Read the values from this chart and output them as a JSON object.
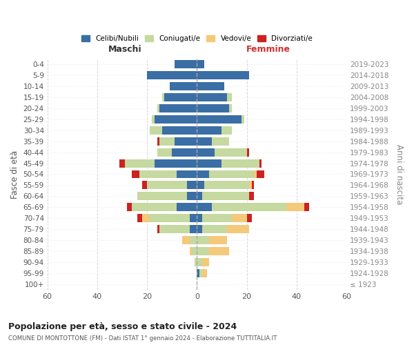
{
  "age_groups": [
    "0-4",
    "5-9",
    "10-14",
    "15-19",
    "20-24",
    "25-29",
    "30-34",
    "35-39",
    "40-44",
    "45-49",
    "50-54",
    "55-59",
    "60-64",
    "65-69",
    "70-74",
    "75-79",
    "80-84",
    "85-89",
    "90-94",
    "95-99",
    "100+"
  ],
  "birth_years": [
    "2019-2023",
    "2014-2018",
    "2009-2013",
    "2004-2008",
    "1999-2003",
    "1994-1998",
    "1989-1993",
    "1984-1988",
    "1979-1983",
    "1974-1978",
    "1969-1973",
    "1964-1968",
    "1959-1963",
    "1954-1958",
    "1949-1953",
    "1944-1948",
    "1939-1943",
    "1934-1938",
    "1929-1933",
    "1924-1928",
    "≤ 1923"
  ],
  "colors": {
    "celibi": "#3a6ea5",
    "coniugati": "#c5d9a0",
    "vedovi": "#f5c97a",
    "divorziati": "#cc2222"
  },
  "maschi": {
    "celibi": [
      9,
      20,
      11,
      13,
      15,
      17,
      14,
      9,
      10,
      17,
      8,
      4,
      4,
      8,
      3,
      3,
      0,
      0,
      0,
      0,
      0
    ],
    "coniugati": [
      0,
      0,
      0,
      1,
      1,
      1,
      5,
      6,
      6,
      12,
      15,
      16,
      20,
      18,
      16,
      12,
      3,
      2,
      1,
      0,
      0
    ],
    "vedovi": [
      0,
      0,
      0,
      0,
      0,
      0,
      0,
      0,
      0,
      0,
      0,
      0,
      0,
      0,
      3,
      0,
      3,
      1,
      0,
      0,
      0
    ],
    "divorziati": [
      0,
      0,
      0,
      0,
      0,
      0,
      0,
      1,
      0,
      2,
      3,
      2,
      0,
      2,
      2,
      1,
      0,
      0,
      0,
      0,
      0
    ]
  },
  "femmine": {
    "celibi": [
      3,
      21,
      11,
      12,
      13,
      18,
      10,
      6,
      7,
      10,
      5,
      3,
      2,
      6,
      2,
      2,
      0,
      0,
      0,
      1,
      0
    ],
    "coniugati": [
      0,
      0,
      0,
      2,
      1,
      1,
      4,
      7,
      13,
      15,
      18,
      18,
      19,
      30,
      12,
      10,
      5,
      5,
      2,
      1,
      0
    ],
    "vedovi": [
      0,
      0,
      0,
      0,
      0,
      0,
      0,
      0,
      0,
      0,
      1,
      1,
      0,
      7,
      6,
      9,
      7,
      8,
      3,
      2,
      0
    ],
    "divorziati": [
      0,
      0,
      0,
      0,
      0,
      0,
      0,
      0,
      1,
      1,
      3,
      1,
      2,
      2,
      2,
      0,
      0,
      0,
      0,
      0,
      0
    ]
  },
  "title": "Popolazione per età, sesso e stato civile - 2024",
  "subtitle": "COMUNE DI MONTOTTONE (FM) - Dati ISTAT 1° gennaio 2024 - Elaborazione TUTTITALIA.IT",
  "xlabel_left": "Maschi",
  "xlabel_right": "Femmine",
  "ylabel_left": "Fasce di età",
  "ylabel_right": "Anni di nascita",
  "xlim": 60,
  "legend_labels": [
    "Celibi/Nubili",
    "Coniugati/e",
    "Vedovi/e",
    "Divorziati/e"
  ],
  "bg_color": "#ffffff",
  "grid_color": "#cccccc"
}
